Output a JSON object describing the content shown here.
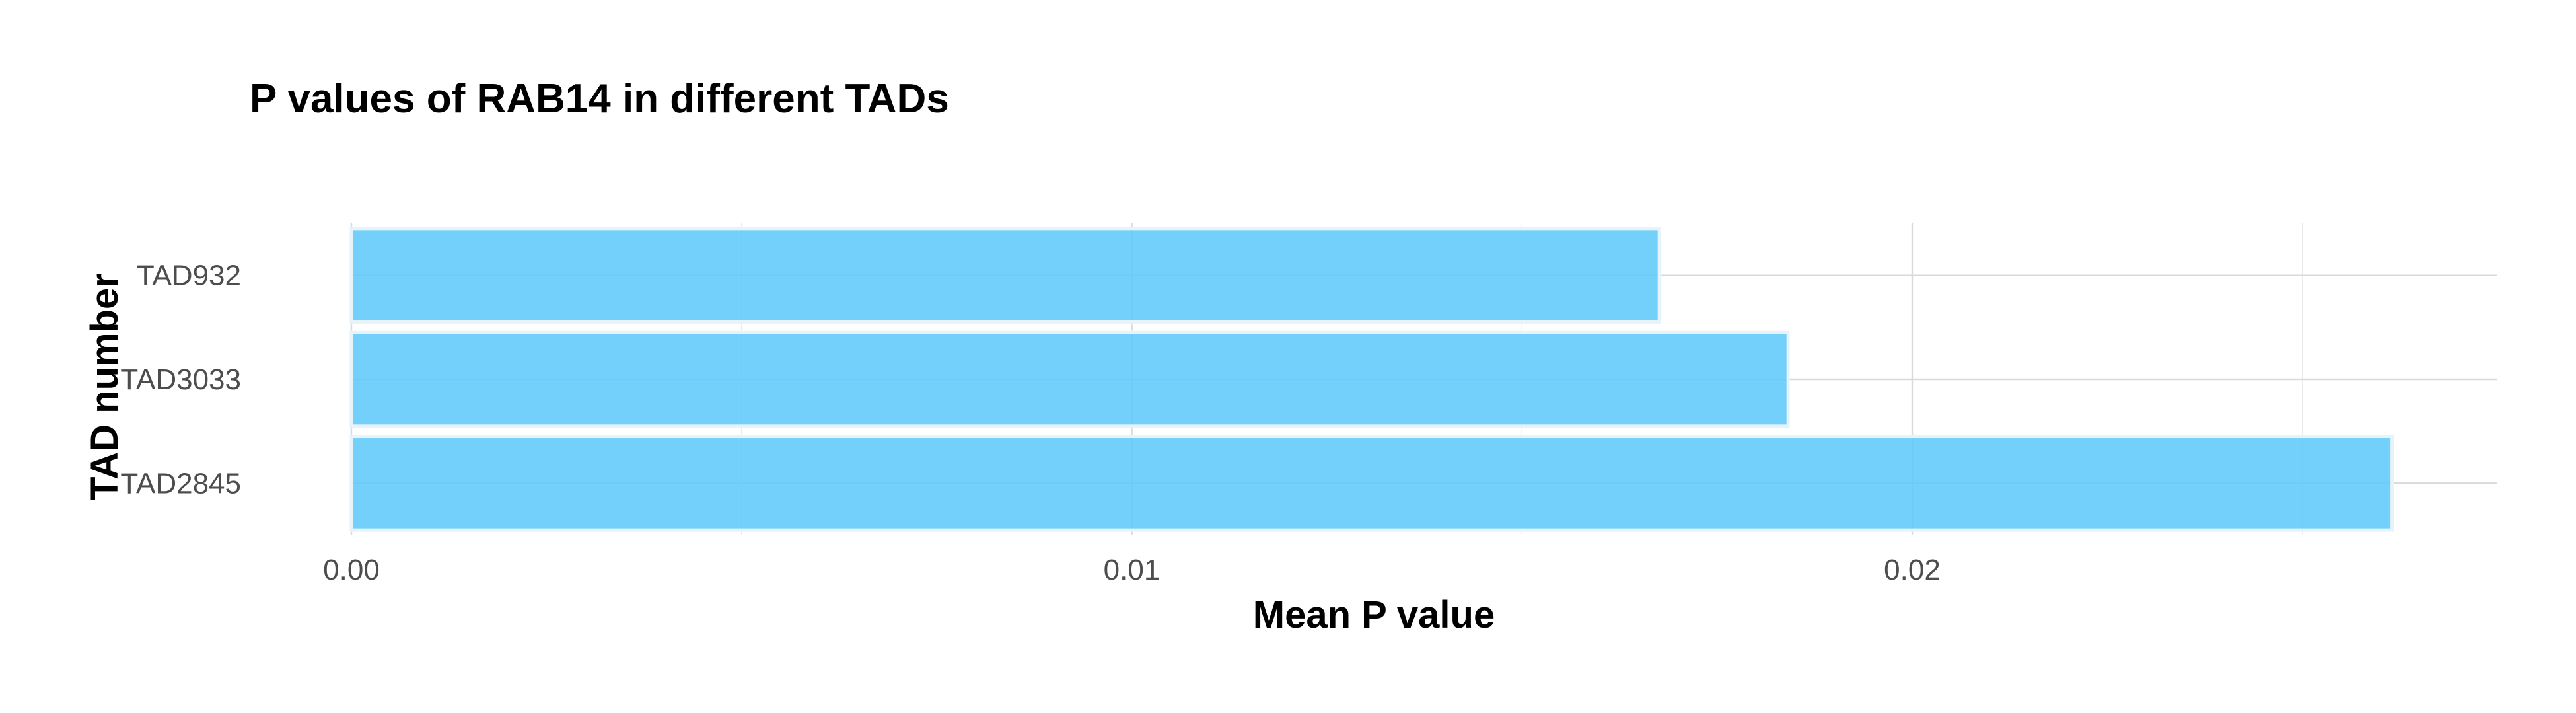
{
  "chart_data": {
    "type": "bar",
    "orientation": "horizontal",
    "title": "P values of RAB14 in different TADs",
    "xlabel": "Mean P value",
    "ylabel": "TAD number",
    "categories": [
      "TAD932",
      "TAD3033",
      "TAD2845"
    ],
    "values": [
      0.01676,
      0.01841,
      0.02615
    ],
    "xlim": [
      0,
      0.0275
    ],
    "x_ticks": [
      {
        "value": 0,
        "label": "0.00"
      },
      {
        "value": 0.01,
        "label": "0.01"
      },
      {
        "value": 0.02,
        "label": "0.02"
      }
    ],
    "x_minor_ticks": [
      0.005,
      0.015,
      0.025
    ],
    "grid": true,
    "legend": "none",
    "bar_color": "#5bc8fa"
  }
}
